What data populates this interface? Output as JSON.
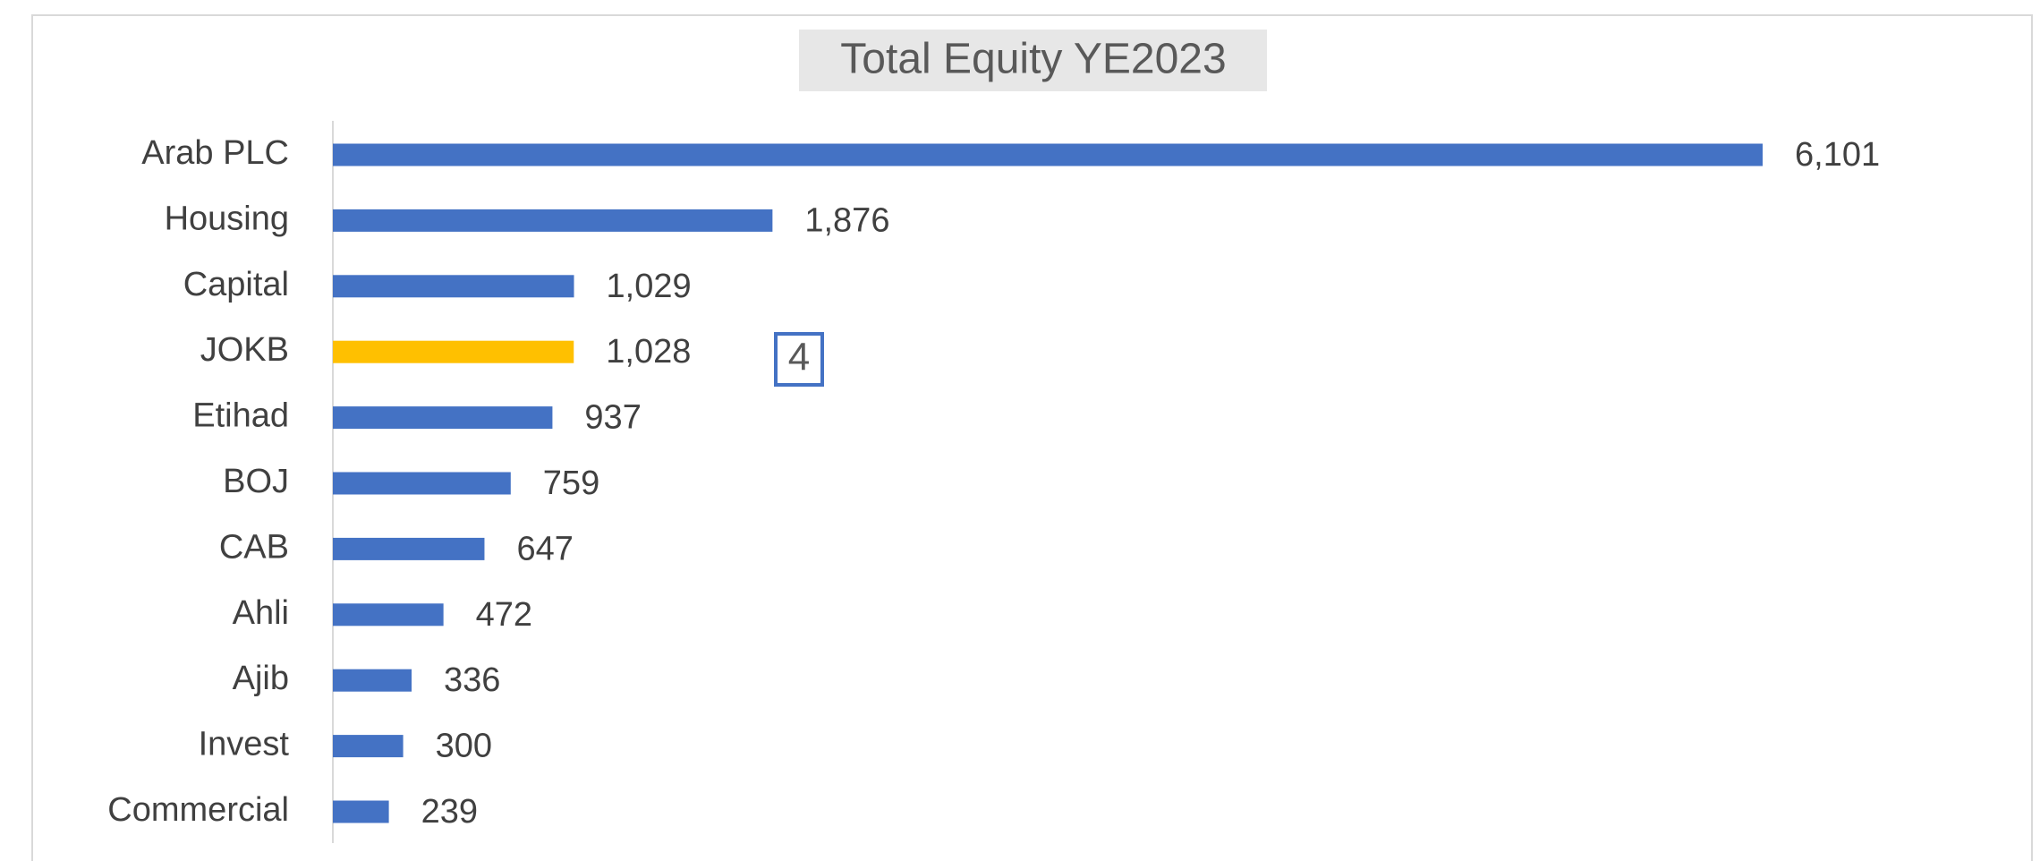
{
  "chart_data": {
    "type": "barh",
    "title": "Total Equity YE2023",
    "categories": [
      "Arab PLC",
      "Housing",
      "Capital",
      "JOKB",
      "Etihad",
      "BOJ",
      "CAB",
      "Ahli",
      "Ajib",
      "Invest",
      "Commercial"
    ],
    "values": [
      6101,
      1876,
      1029,
      1028,
      937,
      759,
      647,
      472,
      336,
      300,
      239
    ],
    "value_labels": [
      "6,101",
      "1,876",
      "1,029",
      "1,028",
      "937",
      "759",
      "647",
      "472",
      "336",
      "300",
      "239"
    ],
    "colors": [
      "#4472c4",
      "#4472c4",
      "#4472c4",
      "#ffc000",
      "#4472c4",
      "#4472c4",
      "#4472c4",
      "#4472c4",
      "#4472c4",
      "#4472c4",
      "#4472c4"
    ],
    "annotation": "4"
  }
}
